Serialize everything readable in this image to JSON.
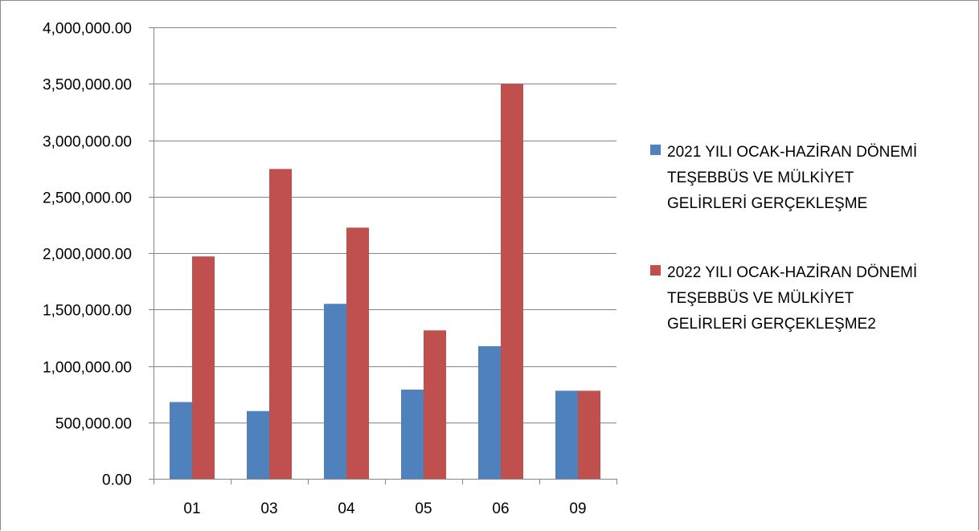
{
  "chart_data": {
    "type": "bar",
    "title": "",
    "xlabel": "",
    "ylabel": "",
    "categories": [
      "01",
      "03",
      "04",
      "05",
      "06",
      "09"
    ],
    "series": [
      {
        "name": "2021 YILI OCAK-HAZİRAN DÖNEMİ TEŞEBBÜS VE MÜLKİYET GELİRLERİ GERÇEKLEŞME",
        "name_lines": [
          "2021 YILI OCAK-HAZİRAN DÖNEMİ",
          "TEŞEBBÜS VE MÜLKİYET",
          "GELİRLERİ GERÇEKLEŞME"
        ],
        "color": "#4f81bd",
        "values": [
          680000,
          600000,
          1550000,
          790000,
          1175000,
          780000
        ]
      },
      {
        "name": "2022 YILI OCAK-HAZİRAN DÖNEMİ TEŞEBBÜS VE MÜLKİYET GELİRLERİ GERÇEKLEŞME2",
        "name_lines": [
          "2022 YILI OCAK-HAZİRAN DÖNEMİ",
          "TEŞEBBÜS VE MÜLKİYET",
          "GELİRLERİ GERÇEKLEŞME2"
        ],
        "color": "#c0504d",
        "values": [
          1970000,
          2745000,
          2225000,
          1315000,
          3500000,
          780000
        ]
      }
    ],
    "ylim": [
      0,
      4000000
    ],
    "yticks": [
      0,
      500000,
      1000000,
      1500000,
      2000000,
      2500000,
      3000000,
      3500000,
      4000000
    ],
    "ytick_labels": [
      "0.00",
      "500,000.00",
      "1,000,000.00",
      "1,500,000.00",
      "2,000,000.00",
      "2,500,000.00",
      "3,000,000.00",
      "3,500,000.00",
      "4,000,000.00"
    ],
    "grid": true,
    "gridline_color": "#868686",
    "legend_position": "right"
  }
}
